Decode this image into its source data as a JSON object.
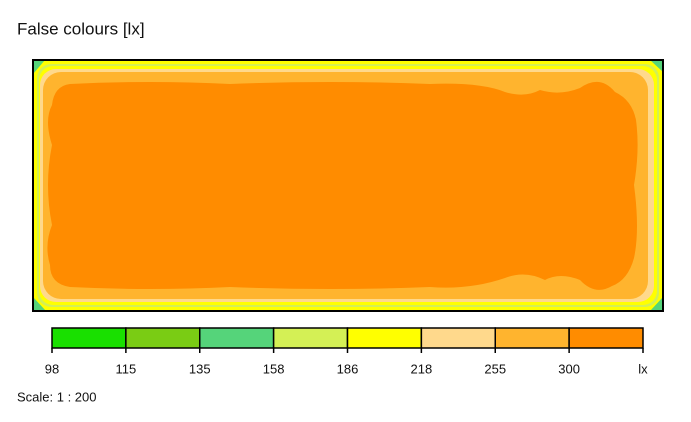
{
  "title": "False colours [lx]",
  "legend": {
    "levels": [
      {
        "label": 98,
        "color": "#19e000"
      },
      {
        "label": 115,
        "color": "#7acc14"
      },
      {
        "label": 135,
        "color": "#55d47a"
      },
      {
        "label": 158,
        "color": "#d4f055"
      },
      {
        "label": 186,
        "color": "#ffff00"
      },
      {
        "label": 218,
        "color": "#ffd98c"
      },
      {
        "label": 255,
        "color": "#ffb42e"
      },
      {
        "label": 300,
        "color": "#ff8c00"
      }
    ],
    "unit": "lx"
  },
  "scale": "Scale: 1 : 200"
}
